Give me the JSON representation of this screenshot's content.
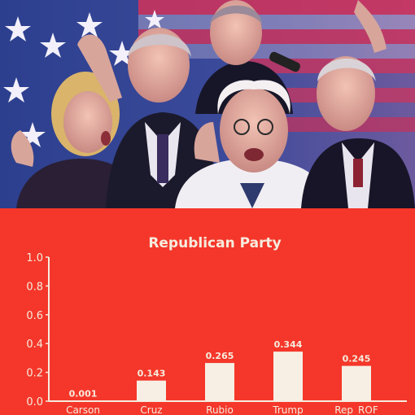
{
  "banner": {
    "image": "group-photo-of-five-politicians-in-front-of-american-flag"
  },
  "colors": {
    "background": "#f4372a",
    "bar": "#f7efe4",
    "text": "#f6ecde",
    "axis": "#f6ecde"
  },
  "chart_data": {
    "type": "bar",
    "title": "Republican Party",
    "xlabel": "",
    "ylabel": "",
    "categories": [
      "Carson",
      "Cruz",
      "Rubio",
      "Trump",
      "Rep_ROF"
    ],
    "values": [
      0.001,
      0.143,
      0.265,
      0.344,
      0.245
    ],
    "value_labels": [
      "0.001",
      "0.143",
      "0.265",
      "0.344",
      "0.245"
    ],
    "ylim": [
      0.0,
      1.0
    ],
    "yticks": [
      "0.0",
      "0.2",
      "0.4",
      "0.6",
      "0.8",
      "1.0"
    ],
    "grid": false,
    "legend": "none"
  }
}
